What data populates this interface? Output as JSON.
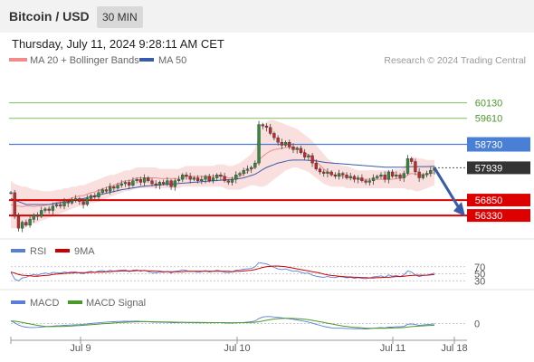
{
  "header": {
    "title": "Bitcoin / USD",
    "timeframe": "30 MIN"
  },
  "timestamp": "Thursday, July 11, 2024 9:28:11 AM CET",
  "colors": {
    "bollinger": "#f28c8c",
    "ma50": "#3a5ba8",
    "rsi": "#5b7fd6",
    "nine_ma": "#cc0000",
    "macd": "#5b7fd6",
    "macd_signal": "#4a9a2a",
    "resistance": "#7fbf5f",
    "pivot": "#4a7fd6",
    "support": "#dd0000",
    "current": "#333333",
    "bull_candle": "#2e8b3a",
    "bear_candle": "#c62828",
    "arrow": "#3a5ba8"
  },
  "chart_data": {
    "type": "candlestick",
    "legend": [
      {
        "name": "MA 20 + Bollinger Bands",
        "color": "#f28c8c"
      },
      {
        "name": "MA 50",
        "color": "#3a5ba8"
      }
    ],
    "credit": "Research © 2024 Trading Central",
    "x_ticks": [
      "Jul 9",
      "Jul 10",
      "Jul 11",
      "Jul 18"
    ],
    "y_range": [
      55600,
      60700
    ],
    "levels": [
      {
        "value": 60130,
        "label": "60130",
        "kind": "resistance"
      },
      {
        "value": 59610,
        "label": "59610",
        "kind": "resistance"
      },
      {
        "value": 58730,
        "label": "58730",
        "kind": "pivot"
      },
      {
        "value": 57939,
        "label": "57939",
        "kind": "current"
      },
      {
        "value": 56850,
        "label": "56850",
        "kind": "support"
      },
      {
        "value": 56330,
        "label": "56330",
        "kind": "support"
      }
    ],
    "price": [
      57100,
      56300,
      55900,
      56100,
      56000,
      56200,
      56350,
      56300,
      56500,
      56550,
      56500,
      56650,
      56700,
      56650,
      56800,
      56750,
      56850,
      56900,
      56800,
      56700,
      56900,
      57000,
      56950,
      57100,
      57200,
      57150,
      57300,
      57250,
      57350,
      57400,
      57450,
      57350,
      57500,
      57550,
      57450,
      57600,
      57500,
      57400,
      57350,
      57450,
      57400,
      57500,
      57300,
      57500,
      57550,
      57700,
      57650,
      57550,
      57600,
      57500,
      57550,
      57650,
      57500,
      57600,
      57700,
      57650,
      57500,
      57450,
      57550,
      57700,
      57750,
      57850,
      57900,
      57950,
      58100,
      59400,
      59350,
      59300,
      59100,
      58950,
      58800,
      58700,
      58800,
      58650,
      58550,
      58600,
      58450,
      58300,
      58350,
      58100,
      57900,
      57800,
      57750,
      57800,
      57700,
      57650,
      57750,
      57700,
      57600,
      57650,
      57550,
      57600,
      57500,
      57450,
      57500,
      57600,
      57650,
      57700,
      57550,
      57800,
      57650,
      57700,
      57600,
      57750,
      58250,
      58150,
      57800,
      57600,
      57700,
      57750,
      57850,
      57939
    ],
    "ma20_upper": [
      57500,
      57400,
      57350,
      57300,
      57300,
      57250,
      57200,
      57200,
      57150,
      57150,
      57150,
      57150,
      57200,
      57200,
      57250,
      57250,
      57300,
      57300,
      57350,
      57350,
      57400,
      57450,
      57500,
      57550,
      57600,
      57650,
      57700,
      57700,
      57750,
      57800,
      57850,
      57850,
      57900,
      57950,
      57950,
      57950,
      57950,
      57950,
      57950,
      57900,
      57900,
      57900,
      57900,
      57900,
      57900,
      57950,
      58000,
      58000,
      58000,
      58000,
      58000,
      58000,
      58000,
      58000,
      58050,
      58050,
      58050,
      58000,
      58000,
      58050,
      58100,
      58200,
      58300,
      58400,
      58600,
      59100,
      59350,
      59500,
      59550,
      59550,
      59500,
      59450,
      59400,
      59350,
      59300,
      59250,
      59150,
      59050,
      58950,
      58850,
      58700,
      58550,
      58400,
      58250,
      58150,
      58100,
      58050,
      58000,
      58000,
      57950,
      57900,
      57850,
      57850,
      57850,
      57850,
      57850,
      57850,
      57850,
      57850,
      57850,
      57850,
      57900,
      57900,
      57950,
      58200,
      58300,
      58300,
      58250,
      58250,
      58200,
      58200,
      58200
    ],
    "ma20_lower": [
      55900,
      55900,
      55950,
      55950,
      56000,
      56050,
      56050,
      56100,
      56150,
      56200,
      56250,
      56300,
      56350,
      56400,
      56450,
      56500,
      56550,
      56600,
      56650,
      56650,
      56700,
      56750,
      56750,
      56800,
      56850,
      56900,
      56950,
      57000,
      57050,
      57100,
      57150,
      57150,
      57200,
      57250,
      57250,
      57250,
      57250,
      57250,
      57250,
      57250,
      57250,
      57250,
      57250,
      57250,
      57250,
      57300,
      57300,
      57300,
      57300,
      57300,
      57300,
      57300,
      57300,
      57300,
      57300,
      57300,
      57250,
      57200,
      57200,
      57200,
      57200,
      57250,
      57300,
      57350,
      57350,
      57300,
      57300,
      57350,
      57450,
      57550,
      57650,
      57750,
      57850,
      57900,
      57950,
      57950,
      57900,
      57850,
      57800,
      57700,
      57600,
      57500,
      57400,
      57350,
      57300,
      57300,
      57300,
      57300,
      57250,
      57250,
      57250,
      57250,
      57250,
      57250,
      57250,
      57250,
      57250,
      57250,
      57250,
      57250,
      57250,
      57250,
      57250,
      57250,
      57200,
      57200,
      57150,
      57150,
      57200,
      57250,
      57300,
      57350
    ],
    "ma50": [
      56900,
      56850,
      56800,
      56750,
      56700,
      56700,
      56700,
      56700,
      56700,
      56700,
      56700,
      56720,
      56740,
      56760,
      56780,
      56800,
      56820,
      56850,
      56870,
      56900,
      56930,
      56960,
      56990,
      57020,
      57050,
      57080,
      57110,
      57140,
      57170,
      57200,
      57220,
      57240,
      57260,
      57280,
      57300,
      57320,
      57330,
      57340,
      57350,
      57360,
      57370,
      57380,
      57390,
      57400,
      57410,
      57420,
      57430,
      57440,
      57450,
      57460,
      57470,
      57480,
      57490,
      57500,
      57510,
      57520,
      57530,
      57540,
      57550,
      57560,
      57580,
      57600,
      57640,
      57680,
      57720,
      57800,
      57880,
      57950,
      58000,
      58050,
      58100,
      58130,
      58160,
      58190,
      58200,
      58200,
      58200,
      58200,
      58190,
      58180,
      58170,
      58150,
      58130,
      58110,
      58100,
      58090,
      58080,
      58070,
      58060,
      58050,
      58040,
      58030,
      58020,
      58010,
      58000,
      57990,
      57980,
      57970,
      57960,
      57960,
      57960,
      57960,
      57960,
      57960,
      57970,
      57980,
      57980,
      57980,
      57980,
      57980,
      57985,
      57990
    ],
    "rsi_panel": {
      "legend": [
        {
          "name": "RSI",
          "color": "#5b7fd6"
        },
        {
          "name": "9MA",
          "color": "#cc0000"
        }
      ],
      "levels": [
        {
          "value": 70,
          "label": "70"
        },
        {
          "value": 50,
          "label": "50"
        },
        {
          "value": 30,
          "label": "30"
        }
      ],
      "y_range": [
        10,
        90
      ],
      "rsi": [
        55,
        35,
        30,
        38,
        40,
        45,
        48,
        46,
        50,
        52,
        50,
        54,
        53,
        52,
        55,
        53,
        56,
        55,
        52,
        50,
        55,
        57,
        54,
        58,
        59,
        56,
        60,
        57,
        59,
        60,
        61,
        56,
        60,
        61,
        57,
        60,
        56,
        53,
        52,
        55,
        54,
        57,
        52,
        57,
        58,
        61,
        59,
        56,
        57,
        54,
        56,
        59,
        55,
        57,
        60,
        58,
        54,
        53,
        56,
        60,
        61,
        63,
        64,
        65,
        70,
        82,
        80,
        78,
        73,
        68,
        64,
        62,
        64,
        60,
        57,
        58,
        54,
        51,
        52,
        46,
        43,
        41,
        40,
        42,
        40,
        39,
        42,
        41,
        38,
        40,
        37,
        39,
        37,
        36,
        38,
        41,
        42,
        44,
        40,
        47,
        43,
        45,
        42,
        47,
        58,
        55,
        47,
        42,
        45,
        46,
        49,
        52
      ],
      "nine_ma": [
        55,
        52,
        48,
        46,
        45,
        44,
        43,
        43,
        44,
        45,
        46,
        48,
        49,
        50,
        51,
        52,
        52,
        53,
        53,
        53,
        53,
        54,
        54,
        55,
        55,
        56,
        56,
        57,
        57,
        58,
        58,
        58,
        58,
        59,
        59,
        59,
        58,
        58,
        57,
        57,
        56,
        56,
        56,
        56,
        56,
        56,
        57,
        57,
        57,
        57,
        57,
        57,
        57,
        57,
        57,
        57,
        57,
        57,
        56,
        57,
        57,
        58,
        59,
        60,
        62,
        65,
        68,
        70,
        71,
        72,
        72,
        71,
        70,
        68,
        66,
        64,
        62,
        60,
        58,
        56,
        54,
        52,
        49,
        47,
        45,
        44,
        43,
        42,
        41,
        41,
        40,
        40,
        39,
        39,
        38,
        38,
        39,
        39,
        40,
        40,
        41,
        42,
        42,
        43,
        44,
        45,
        46,
        46,
        46,
        46,
        47,
        48
      ]
    },
    "macd_panel": {
      "legend": [
        {
          "name": "MACD",
          "color": "#5b7fd6"
        },
        {
          "name": "MACD Signal",
          "color": "#4a9a2a"
        }
      ],
      "levels": [
        {
          "value": 0,
          "label": "0"
        }
      ],
      "y_range": [
        -180,
        180
      ],
      "macd": [
        40,
        10,
        -20,
        -40,
        -50,
        -55,
        -55,
        -52,
        -48,
        -45,
        -40,
        -35,
        -30,
        -28,
        -25,
        -22,
        -20,
        -18,
        -15,
        -10,
        -5,
        0,
        5,
        10,
        15,
        20,
        22,
        25,
        28,
        30,
        32,
        30,
        32,
        33,
        30,
        28,
        25,
        20,
        18,
        18,
        16,
        16,
        12,
        12,
        13,
        15,
        15,
        12,
        12,
        10,
        10,
        12,
        10,
        10,
        12,
        12,
        8,
        5,
        6,
        10,
        12,
        15,
        20,
        25,
        35,
        70,
        90,
        95,
        95,
        90,
        85,
        78,
        72,
        65,
        58,
        50,
        40,
        30,
        20,
        5,
        -10,
        -25,
        -40,
        -50,
        -60,
        -65,
        -65,
        -65,
        -70,
        -70,
        -72,
        -70,
        -72,
        -75,
        -72,
        -65,
        -60,
        -55,
        -60,
        -50,
        -50,
        -45,
        -45,
        -40,
        -10,
        -5,
        -15,
        -25,
        -20,
        -15,
        -10,
        -5
      ],
      "signal": [
        35,
        32,
        25,
        15,
        5,
        -5,
        -15,
        -25,
        -32,
        -38,
        -42,
        -42,
        -41,
        -40,
        -38,
        -36,
        -33,
        -30,
        -27,
        -23,
        -20,
        -16,
        -12,
        -8,
        -4,
        0,
        4,
        8,
        12,
        15,
        18,
        20,
        22,
        24,
        25,
        26,
        26,
        25,
        24,
        23,
        22,
        21,
        20,
        19,
        18,
        17,
        16,
        16,
        15,
        15,
        14,
        14,
        13,
        13,
        12,
        12,
        12,
        11,
        11,
        11,
        11,
        12,
        13,
        15,
        18,
        25,
        35,
        45,
        55,
        62,
        67,
        70,
        71,
        71,
        70,
        67,
        63,
        58,
        52,
        44,
        35,
        25,
        15,
        5,
        -5,
        -15,
        -25,
        -33,
        -40,
        -47,
        -52,
        -56,
        -60,
        -63,
        -65,
        -66,
        -66,
        -65,
        -65,
        -63,
        -61,
        -59,
        -57,
        -54,
        -48,
        -42,
        -38,
        -35,
        -32,
        -29,
        -26,
        -23
      ]
    }
  }
}
